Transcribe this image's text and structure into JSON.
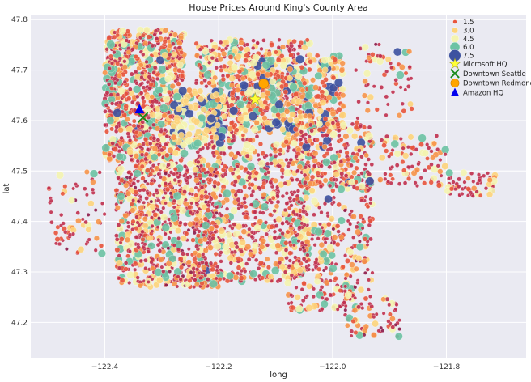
{
  "chart_data": {
    "type": "scatter",
    "title": "House Prices Around King's County Area",
    "xlabel": "long",
    "ylabel": "lat",
    "xlim": [
      -122.53,
      -121.66
    ],
    "ylim": [
      47.13,
      47.81
    ],
    "xticks": [
      {
        "value": -122.4,
        "label": "−122.4"
      },
      {
        "value": -122.2,
        "label": "−122.2"
      },
      {
        "value": -122.0,
        "label": "−122.0"
      },
      {
        "value": -121.8,
        "label": "−121.8"
      }
    ],
    "yticks": [
      {
        "value": 47.2,
        "label": "47.2"
      },
      {
        "value": 47.3,
        "label": "47.3"
      },
      {
        "value": 47.4,
        "label": "47.4"
      },
      {
        "value": 47.5,
        "label": "47.5"
      },
      {
        "value": 47.6,
        "label": "47.6"
      },
      {
        "value": 47.7,
        "label": "47.7"
      },
      {
        "value": 47.8,
        "label": "47.8"
      }
    ],
    "grid": true,
    "legend_position": "top-right",
    "size_legend": [
      {
        "label": "1.5",
        "color": "#e8553d"
      },
      {
        "label": "3.0",
        "color": "#fdd47c"
      },
      {
        "label": "4.5",
        "color": "#f4f4b0"
      },
      {
        "label": "6.0",
        "color": "#6cc3a4"
      },
      {
        "label": "7.5",
        "color": "#3d52a0"
      }
    ],
    "landmarks": [
      {
        "label": "Microsoft HQ",
        "long": -122.136,
        "lat": 47.642,
        "marker": "star",
        "color": "#ffff33"
      },
      {
        "label": "Downtown Seattle",
        "long": -122.333,
        "lat": 47.606,
        "marker": "x",
        "color": "#1a8a1a"
      },
      {
        "label": "Downtown Redmond",
        "long": -122.121,
        "lat": 47.673,
        "marker": "circle",
        "color": "#ffa500"
      },
      {
        "label": "Amazon HQ",
        "long": -122.339,
        "lat": 47.622,
        "marker": "triangle",
        "color": "#0000ee"
      }
    ],
    "price_color_scale": [
      "#8c1a4a",
      "#c0304f",
      "#e8553d",
      "#f7944a",
      "#fdd47c",
      "#f4f4b0",
      "#6cc3a4",
      "#3d52a0"
    ],
    "point_clusters": [
      {
        "long_range": [
          -122.4,
          -122.26
        ],
        "lat_range": [
          47.52,
          47.78
        ],
        "count": 900,
        "price_level": 0.18
      },
      {
        "long_range": [
          -122.24,
          -122.04
        ],
        "lat_range": [
          47.28,
          47.76
        ],
        "count": 1300,
        "price_level": 0.16
      },
      {
        "long_range": [
          -122.38,
          -122.2
        ],
        "lat_range": [
          47.27,
          47.52
        ],
        "count": 800,
        "price_level": 0.12
      },
      {
        "long_range": [
          -122.18,
          -121.98
        ],
        "lat_range": [
          47.58,
          47.73
        ],
        "count": 400,
        "price_level": 0.35
      },
      {
        "long_range": [
          -122.28,
          -122.19
        ],
        "lat_range": [
          47.55,
          47.66
        ],
        "count": 150,
        "price_level": 0.55
      },
      {
        "long_range": [
          -122.08,
          -121.93
        ],
        "lat_range": [
          47.22,
          47.45
        ],
        "count": 350,
        "price_level": 0.12
      },
      {
        "long_range": [
          -122.05,
          -121.93
        ],
        "lat_range": [
          47.46,
          47.6
        ],
        "count": 250,
        "price_level": 0.2
      },
      {
        "long_range": [
          -121.92,
          -121.8
        ],
        "lat_range": [
          47.47,
          47.57
        ],
        "count": 90,
        "price_level": 0.14
      },
      {
        "long_range": [
          -121.8,
          -121.71
        ],
        "lat_range": [
          47.45,
          47.5
        ],
        "count": 60,
        "price_level": 0.14
      },
      {
        "long_range": [
          -122.5,
          -122.4
        ],
        "lat_range": [
          47.33,
          47.5
        ],
        "count": 70,
        "price_level": 0.12
      },
      {
        "long_range": [
          -121.98,
          -121.88
        ],
        "lat_range": [
          47.17,
          47.25
        ],
        "count": 60,
        "price_level": 0.1
      },
      {
        "long_range": [
          -121.96,
          -121.86
        ],
        "lat_range": [
          47.6,
          47.76
        ],
        "count": 60,
        "price_level": 0.12
      }
    ]
  }
}
